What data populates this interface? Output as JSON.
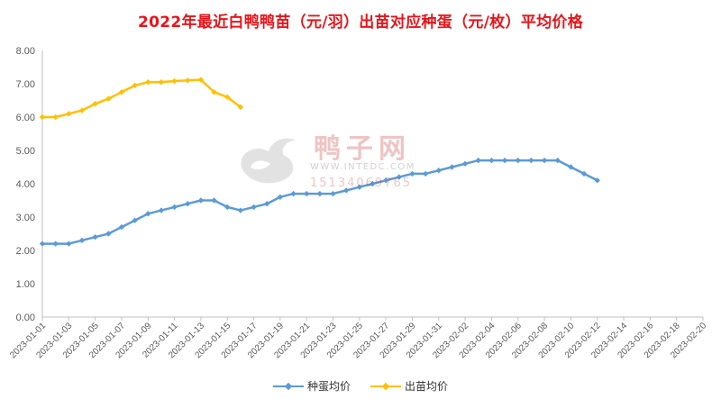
{
  "chart_data": {
    "type": "line",
    "title": "2022年最近白鸭鸭苗（元/羽）出苗对应种蛋（元/枚）平均价格",
    "xlabel": "",
    "ylabel": "",
    "ylim": [
      0,
      8
    ],
    "yticks": [
      "0.00",
      "1.00",
      "2.00",
      "3.00",
      "4.00",
      "5.00",
      "6.00",
      "7.00",
      "8.00"
    ],
    "x_tick_labels": [
      "2023-01-01",
      "2023-01-03",
      "2023-01-05",
      "2023-01-07",
      "2023-01-09",
      "2023-01-11",
      "2023-01-13",
      "2023-01-15",
      "2023-01-17",
      "2023-01-19",
      "2023-01-21",
      "2023-01-23",
      "2023-01-25",
      "2023-01-27",
      "2023-01-29",
      "2023-01-31",
      "2023-02-02",
      "2023-02-04",
      "2023-02-06",
      "2023-02-08",
      "2023-02-10",
      "2023-02-12",
      "2023-02-14",
      "2023-02-16",
      "2023-02-18",
      "2023-02-20"
    ],
    "x_start": "2023-01-01",
    "x_end": "2023-02-20",
    "grid": false,
    "legend_position": "bottom",
    "series": [
      {
        "name": "种蛋均价",
        "color": "#5b9bd5",
        "marker": "diamond",
        "points": [
          [
            "2023-01-01",
            2.2
          ],
          [
            "2023-01-02",
            2.2
          ],
          [
            "2023-01-03",
            2.2
          ],
          [
            "2023-01-04",
            2.3
          ],
          [
            "2023-01-05",
            2.4
          ],
          [
            "2023-01-06",
            2.5
          ],
          [
            "2023-01-07",
            2.7
          ],
          [
            "2023-01-08",
            2.9
          ],
          [
            "2023-01-09",
            3.1
          ],
          [
            "2023-01-10",
            3.2
          ],
          [
            "2023-01-11",
            3.3
          ],
          [
            "2023-01-12",
            3.4
          ],
          [
            "2023-01-13",
            3.5
          ],
          [
            "2023-01-14",
            3.5
          ],
          [
            "2023-01-15",
            3.3
          ],
          [
            "2023-01-16",
            3.2
          ],
          [
            "2023-01-17",
            3.3
          ],
          [
            "2023-01-18",
            3.4
          ],
          [
            "2023-01-19",
            3.6
          ],
          [
            "2023-01-20",
            3.7
          ],
          [
            "2023-01-21",
            3.7
          ],
          [
            "2023-01-22",
            3.7
          ],
          [
            "2023-01-23",
            3.7
          ],
          [
            "2023-01-24",
            3.8
          ],
          [
            "2023-01-25",
            3.9
          ],
          [
            "2023-01-26",
            4.0
          ],
          [
            "2023-01-27",
            4.1
          ],
          [
            "2023-01-28",
            4.2
          ],
          [
            "2023-01-29",
            4.3
          ],
          [
            "2023-01-30",
            4.3
          ],
          [
            "2023-01-31",
            4.4
          ],
          [
            "2023-02-01",
            4.5
          ],
          [
            "2023-02-02",
            4.6
          ],
          [
            "2023-02-03",
            4.7
          ],
          [
            "2023-02-04",
            4.7
          ],
          [
            "2023-02-05",
            4.7
          ],
          [
            "2023-02-06",
            4.7
          ],
          [
            "2023-02-07",
            4.7
          ],
          [
            "2023-02-08",
            4.7
          ],
          [
            "2023-02-09",
            4.7
          ],
          [
            "2023-02-10",
            4.5
          ],
          [
            "2023-02-11",
            4.3
          ],
          [
            "2023-02-12",
            4.1
          ]
        ]
      },
      {
        "name": "出苗均价",
        "color": "#ffc000",
        "marker": "diamond",
        "points": [
          [
            "2023-01-01",
            6.0
          ],
          [
            "2023-01-02",
            6.0
          ],
          [
            "2023-01-03",
            6.1
          ],
          [
            "2023-01-04",
            6.2
          ],
          [
            "2023-01-05",
            6.4
          ],
          [
            "2023-01-06",
            6.55
          ],
          [
            "2023-01-07",
            6.75
          ],
          [
            "2023-01-08",
            6.95
          ],
          [
            "2023-01-09",
            7.05
          ],
          [
            "2023-01-10",
            7.05
          ],
          [
            "2023-01-11",
            7.08
          ],
          [
            "2023-01-12",
            7.1
          ],
          [
            "2023-01-13",
            7.12
          ],
          [
            "2023-01-14",
            6.75
          ],
          [
            "2023-01-15",
            6.6
          ],
          [
            "2023-01-16",
            6.3
          ]
        ]
      }
    ]
  },
  "watermark": {
    "name": "鸭子网",
    "site": "WWW.INTEDC.COM",
    "phone": "15134069765"
  }
}
